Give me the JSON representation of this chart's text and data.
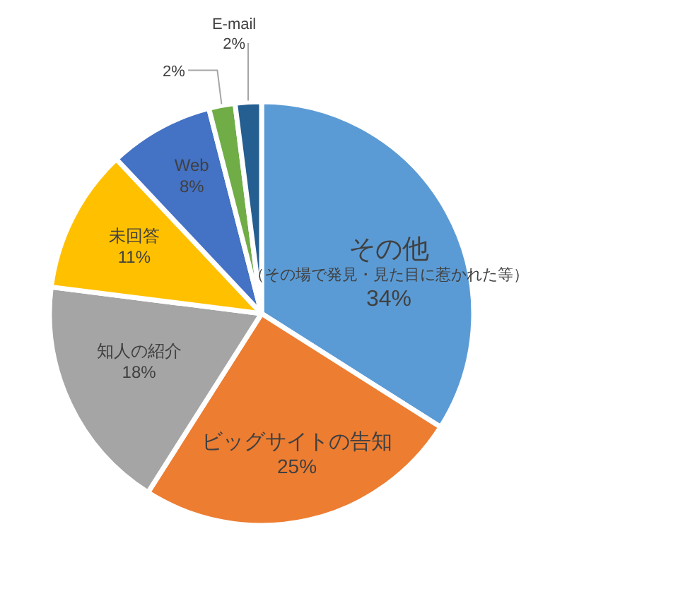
{
  "chart_data": {
    "type": "pie",
    "categories": [
      "その他（その場で発見・見た目に惹かれた等）",
      "ビッグサイトの告知",
      "知人の紹介",
      "未回答",
      "Web",
      null,
      "E-mail"
    ],
    "values": [
      34,
      25,
      18,
      11,
      8,
      2,
      2
    ],
    "colors": [
      "#5b9bd5",
      "#ed7d31",
      "#a5a5a5",
      "#ffc000",
      "#4472c4",
      "#70ad47",
      "#255e91"
    ],
    "value_labels": [
      "34%",
      "25%",
      "18%",
      "11%",
      "8%",
      "2%",
      "2%"
    ],
    "legend": false
  }
}
